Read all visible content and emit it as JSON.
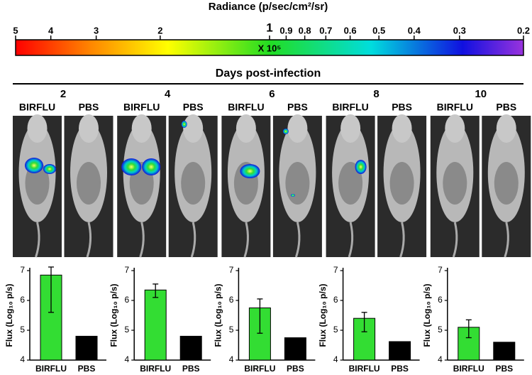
{
  "colorbar": {
    "title": "Radiance (p/sec/cm²/sr)",
    "ticks": [
      5,
      4,
      3,
      2,
      1,
      0.9,
      0.8,
      0.7,
      0.6,
      0.5,
      0.4,
      0.3,
      0.2
    ],
    "range": [
      5,
      0.2
    ],
    "scale": "log",
    "multiplier": "X 10⁵"
  },
  "header": {
    "title": "Days post-infection"
  },
  "panels": [
    {
      "day": "2",
      "labels": [
        "BIRFLU",
        "PBS"
      ]
    },
    {
      "day": "4",
      "labels": [
        "BIRFLU",
        "PBS"
      ]
    },
    {
      "day": "6",
      "labels": [
        "BIRFLU",
        "PBS"
      ]
    },
    {
      "day": "8",
      "labels": [
        "BIRFLU",
        "PBS"
      ]
    },
    {
      "day": "10",
      "labels": [
        "BIRFLU",
        "PBS"
      ]
    }
  ],
  "chart_data": [
    {
      "type": "bar",
      "ylabel": "Flux (Log₁₀ p/s)",
      "categories": [
        "BIRFLU",
        "PBS"
      ],
      "values": [
        6.85,
        4.8
      ],
      "error_ranges": [
        [
          5.6,
          7.12
        ],
        null
      ],
      "colors": [
        "#33dd33",
        "#000000"
      ],
      "ylim": [
        4,
        7
      ],
      "yticks": [
        4,
        5,
        6,
        7
      ]
    },
    {
      "type": "bar",
      "ylabel": "Flux (Log₁₀ p/s)",
      "categories": [
        "BIRFLU",
        "PBS"
      ],
      "values": [
        6.35,
        4.8
      ],
      "error_ranges": [
        [
          6.1,
          6.55
        ],
        null
      ],
      "colors": [
        "#33dd33",
        "#000000"
      ],
      "ylim": [
        4,
        7
      ],
      "yticks": [
        4,
        5,
        6,
        7
      ]
    },
    {
      "type": "bar",
      "ylabel": "Flux (Log₁₀ p/s)",
      "categories": [
        "BIRFLU",
        "PBS"
      ],
      "values": [
        5.75,
        4.75
      ],
      "error_ranges": [
        [
          4.9,
          6.05
        ],
        null
      ],
      "colors": [
        "#33dd33",
        "#000000"
      ],
      "ylim": [
        4,
        7
      ],
      "yticks": [
        4,
        5,
        6,
        7
      ]
    },
    {
      "type": "bar",
      "ylabel": "Flux (Log₁₀ p/s)",
      "categories": [
        "BIRFLU",
        "PBS"
      ],
      "values": [
        5.4,
        4.62
      ],
      "error_ranges": [
        [
          4.95,
          5.6
        ],
        null
      ],
      "colors": [
        "#33dd33",
        "#000000"
      ],
      "ylim": [
        4,
        7
      ],
      "yticks": [
        4,
        5,
        6,
        7
      ]
    },
    {
      "type": "bar",
      "ylabel": "Flux (Log₁₀ p/s)",
      "categories": [
        "BIRFLU",
        "PBS"
      ],
      "values": [
        5.1,
        4.6
      ],
      "error_ranges": [
        [
          4.75,
          5.35
        ],
        null
      ],
      "colors": [
        "#33dd33",
        "#000000"
      ],
      "ylim": [
        4,
        7
      ],
      "yticks": [
        4,
        5,
        6,
        7
      ]
    }
  ]
}
